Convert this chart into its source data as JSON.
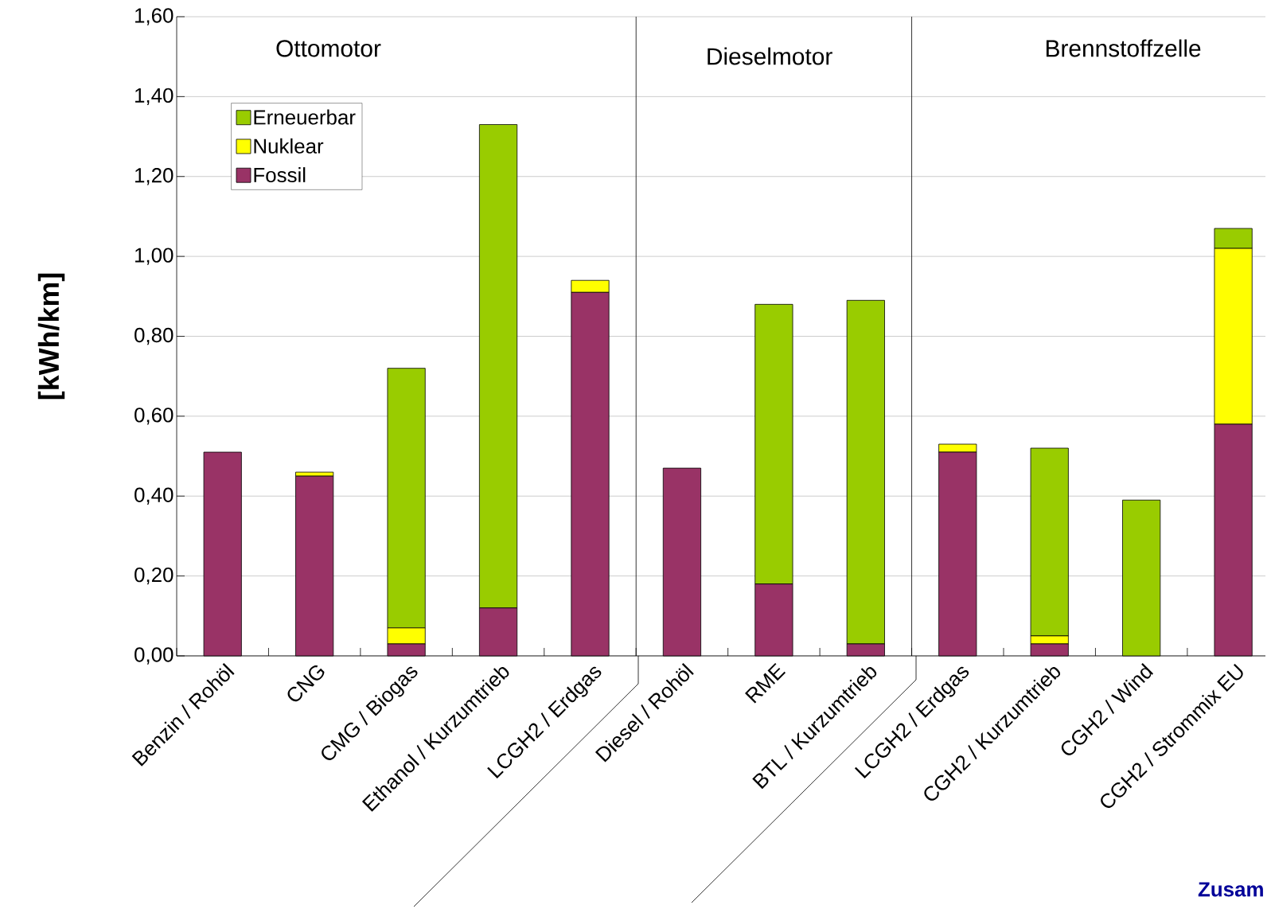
{
  "chart_data": {
    "type": "bar",
    "stacked": true,
    "ylabel": "[kWh/km]",
    "categories": [
      "Benzin / Rohöl",
      "CNG",
      "CMG / Biogas",
      "Ethanol / Kurzumtrieb",
      "LCGH2 / Erdgas",
      "Diesel / Rohöl",
      "RME",
      "BTL / Kurzumtrieb",
      "LCGH2 / Erdgas",
      "CGH2 / Kurzumtrieb",
      "CGH2 / Wind",
      "CGH2 / Strommix EU"
    ],
    "series": [
      {
        "name": "Fossil",
        "color": "#993366",
        "values": [
          0.51,
          0.45,
          0.03,
          0.12,
          0.91,
          0.47,
          0.18,
          0.03,
          0.51,
          0.03,
          null,
          0.58
        ]
      },
      {
        "name": "Nuklear",
        "color": "#ffff00",
        "values": [
          null,
          0.01,
          0.04,
          null,
          0.03,
          null,
          null,
          null,
          0.02,
          0.02,
          null,
          0.44
        ]
      },
      {
        "name": "Erneuerbar",
        "color": "#99cc00",
        "values": [
          null,
          null,
          0.65,
          1.21,
          null,
          null,
          0.7,
          0.86,
          null,
          0.47,
          0.39,
          0.05
        ]
      }
    ],
    "ylim": [
      0,
      1.6
    ],
    "yticks": [
      {
        "value": 0,
        "label": "0,00"
      },
      {
        "value": 0.2,
        "label": "0,20"
      },
      {
        "value": 0.4,
        "label": "0,40"
      },
      {
        "value": 0.6,
        "label": "0,60"
      },
      {
        "value": 0.8,
        "label": "0,80"
      },
      {
        "value": 1.0,
        "label": "1,00"
      },
      {
        "value": 1.2,
        "label": "1,20"
      },
      {
        "value": 1.4,
        "label": "1,40"
      },
      {
        "value": 1.6,
        "label": "1,60"
      }
    ],
    "grid": "y",
    "legend": "top left",
    "annotations": [
      "Ottomotor",
      "Dieselmotor",
      "Brennstoffzelle",
      "Zusam"
    ]
  }
}
